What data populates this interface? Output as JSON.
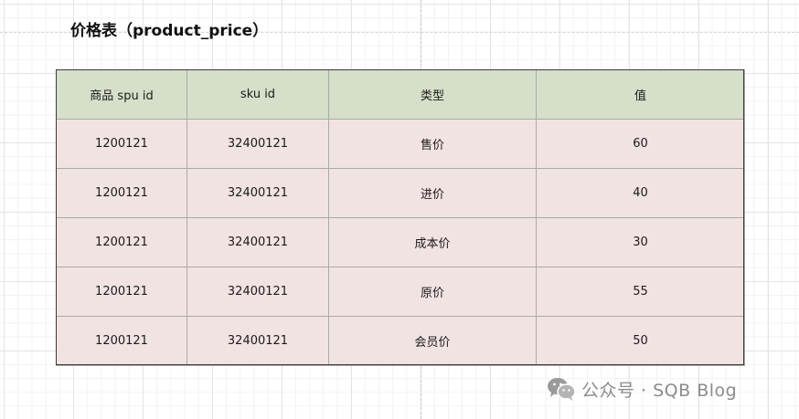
{
  "title": "价格表（product_price）",
  "table": {
    "headers": [
      "商品 spu id",
      "sku id",
      "类型",
      "值"
    ],
    "rows": [
      [
        "1200121",
        "32400121",
        "售价",
        "60"
      ],
      [
        "1200121",
        "32400121",
        "进价",
        "40"
      ],
      [
        "1200121",
        "32400121",
        "成本价",
        "30"
      ],
      [
        "1200121",
        "32400121",
        "原价",
        "55"
      ],
      [
        "1200121",
        "32400121",
        "会员价",
        "50"
      ]
    ]
  },
  "watermark": {
    "text": "公众号 · SQB Blog",
    "icon": "wechat-icon"
  },
  "colors": {
    "header_bg": "#d6dfc9",
    "row_bg": "#f2e3e3",
    "grid": "#e4e4e4"
  }
}
